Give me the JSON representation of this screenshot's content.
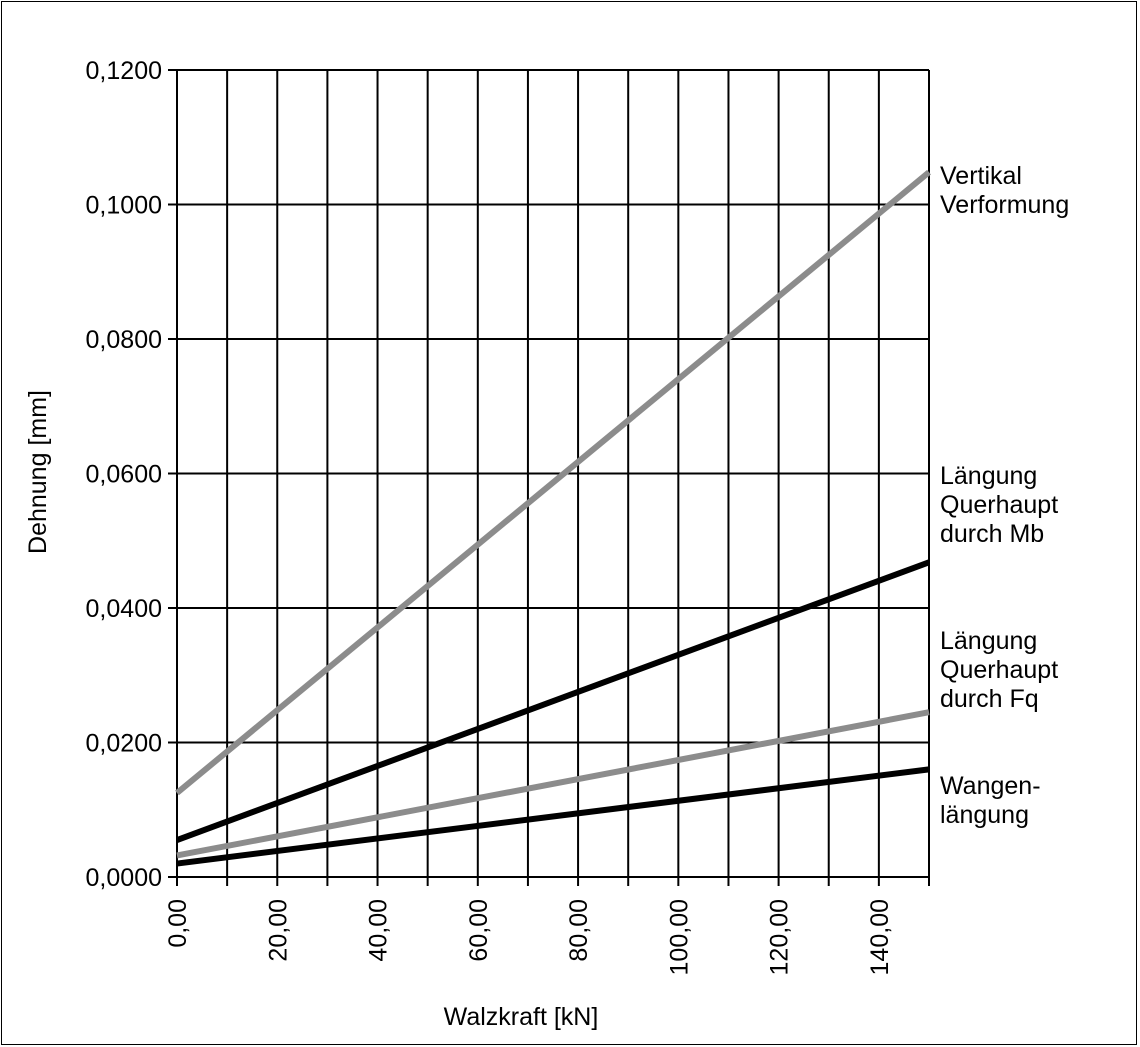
{
  "chart_data": {
    "type": "line",
    "title": "",
    "xlabel": "Walzkraft [kN]",
    "ylabel": "Dehnung [mm]",
    "xlim": [
      0,
      150
    ],
    "ylim": [
      0,
      0.12
    ],
    "x_ticks": [
      0,
      20,
      40,
      60,
      80,
      100,
      120,
      140
    ],
    "x_tick_labels": [
      "0,00",
      "20,00",
      "40,00",
      "60,00",
      "80,00",
      "100,00",
      "120,00",
      "140,00"
    ],
    "x_gridlines": [
      0,
      10,
      20,
      30,
      40,
      50,
      60,
      70,
      80,
      90,
      100,
      110,
      120,
      130,
      140,
      150
    ],
    "y_ticks": [
      0,
      0.02,
      0.04,
      0.06,
      0.08,
      0.1,
      0.12
    ],
    "y_tick_labels": [
      "0,0000",
      "0,0200",
      "0,0400",
      "0,0600",
      "0,0800",
      "0,1000",
      "0,1200"
    ],
    "grid": true,
    "legend_placement": "right, inline labels at line ends",
    "series": [
      {
        "name": "Vertikal\nVerformung",
        "label_lines": [
          "Vertikal",
          "Verformung"
        ],
        "color": "#8c8c8c",
        "x": [
          0,
          150
        ],
        "values": [
          0.0125,
          0.1048
        ]
      },
      {
        "name": "Längung Querhaupt durch Mb",
        "label_lines": [
          "Längung",
          "Querhaupt",
          "durch Mb"
        ],
        "color": "#000000",
        "x": [
          0,
          150
        ],
        "values": [
          0.0055,
          0.0468
        ]
      },
      {
        "name": "Längung Querhaupt durch Fq",
        "label_lines": [
          "Längung",
          "Querhaupt",
          "durch Fq"
        ],
        "color": "#8c8c8c",
        "x": [
          0,
          150
        ],
        "values": [
          0.0032,
          0.0245
        ]
      },
      {
        "name": "Wangen-längung",
        "label_lines": [
          "Wangen-",
          "längung"
        ],
        "color": "#000000",
        "x": [
          0,
          150
        ],
        "values": [
          0.002,
          0.016
        ]
      }
    ]
  }
}
